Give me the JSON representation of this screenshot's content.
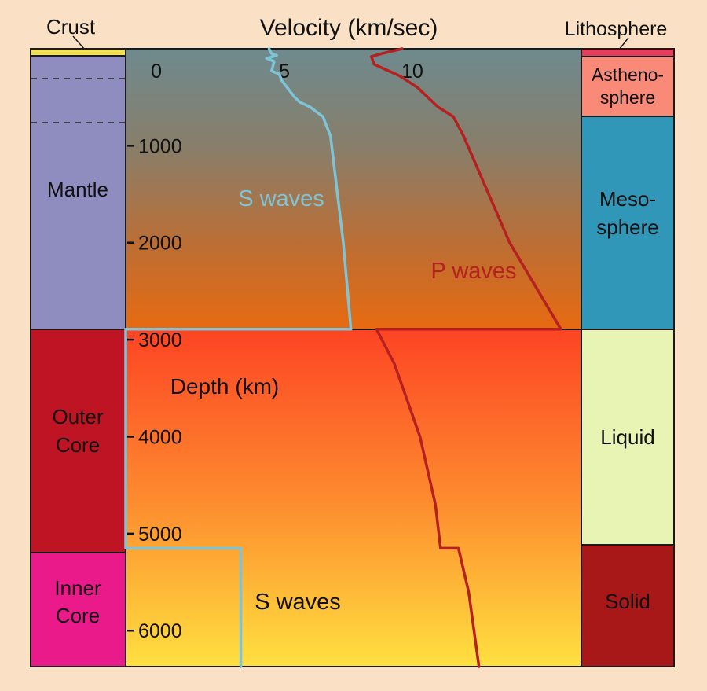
{
  "chart_data": {
    "type": "line",
    "xlabel": "Velocity (km/sec)",
    "ylabel": "Depth (km)",
    "x_ticks": [
      0,
      5,
      10
    ],
    "y_ticks": [
      1000,
      2000,
      3000,
      4000,
      5000,
      6000
    ],
    "xlim": [
      -1.2,
      16.6
    ],
    "ylim": [
      0,
      6371
    ],
    "series": [
      {
        "name": "S waves",
        "color": "#7ec4d6",
        "points": [
          [
            4.4,
            0
          ],
          [
            4.5,
            50
          ],
          [
            4.7,
            70
          ],
          [
            4.3,
            100
          ],
          [
            4.6,
            130
          ],
          [
            4.5,
            230
          ],
          [
            4.8,
            260
          ],
          [
            4.9,
            330
          ],
          [
            5.4,
            500
          ],
          [
            5.6,
            550
          ],
          [
            6.0,
            600
          ],
          [
            6.5,
            700
          ],
          [
            6.8,
            900
          ],
          [
            7.3,
            2000
          ],
          [
            7.6,
            2891
          ],
          [
            -1.2,
            2891
          ],
          [
            -1.2,
            5150
          ],
          [
            3.3,
            5150
          ],
          [
            3.3,
            6371
          ]
        ]
      },
      {
        "name": "P waves",
        "color": "#b52020",
        "points": [
          [
            9.6,
            0
          ],
          [
            8.8,
            50
          ],
          [
            8.4,
            80
          ],
          [
            8.5,
            160
          ],
          [
            9.0,
            220
          ],
          [
            9.5,
            280
          ],
          [
            10.2,
            400
          ],
          [
            10.6,
            500
          ],
          [
            11.0,
            600
          ],
          [
            11.6,
            700
          ],
          [
            12.0,
            900
          ],
          [
            13.8,
            2000
          ],
          [
            15.8,
            2891
          ],
          [
            8.6,
            2891
          ],
          [
            9.3,
            3250
          ],
          [
            10.3,
            4000
          ],
          [
            10.9,
            4700
          ],
          [
            11.1,
            5150
          ],
          [
            11.8,
            5150
          ],
          [
            12.2,
            5600
          ],
          [
            12.6,
            6371
          ]
        ]
      }
    ],
    "annotations": [
      "S waves",
      "P waves",
      "S waves"
    ]
  },
  "labels": {
    "crust": "Crust",
    "lithosphere": "Lithosphere",
    "mantle": "Mantle",
    "outer_core": [
      "Outer",
      "Core"
    ],
    "inner_core": [
      "Inner",
      "Core"
    ],
    "asthenosphere": [
      "Astheno-",
      "sphere"
    ],
    "mesosphere": [
      "Meso-",
      "sphere"
    ],
    "liquid": "Liquid",
    "solid": "Solid"
  },
  "colors": {
    "background": "#fae0c4",
    "crust": "#f2e155",
    "mantle": "#8f8cc0",
    "outer_core": "#be1424",
    "inner_core": "#ea1a8a",
    "lithosphere": "#e83c5c",
    "asthenosphere": "#fa8a78",
    "mesosphere": "#3097b8",
    "liquid": "#e7f4b4",
    "solid": "#a81818"
  }
}
